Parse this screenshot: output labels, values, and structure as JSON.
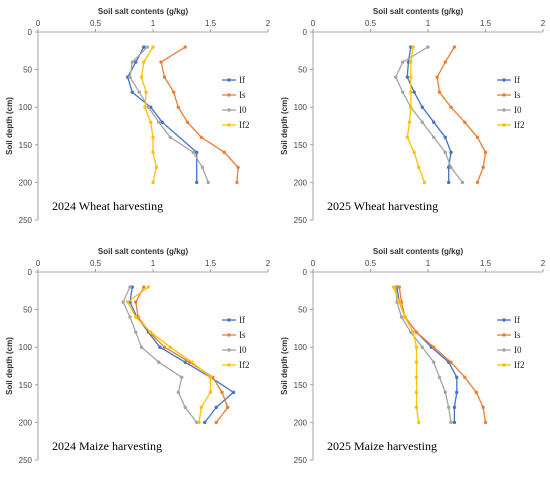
{
  "chart_data": [
    {
      "type": "line",
      "title": "2024 Wheat harvesting",
      "xlabel": "Soil salt contents (g/kg)",
      "ylabel": "Soil depth (cm)",
      "xlim": [
        0,
        2
      ],
      "ylim": [
        0,
        250
      ],
      "x_ticks": [
        "0",
        "0.5",
        "1",
        "1.5",
        "2"
      ],
      "y_ticks": [
        "0",
        "50",
        "100",
        "150",
        "200",
        "250"
      ],
      "y_inverted": true,
      "legend_position": "right",
      "series": [
        {
          "name": "If",
          "color": "#4472C4",
          "points": [
            [
              0.92,
              20
            ],
            [
              0.85,
              40
            ],
            [
              0.78,
              60
            ],
            [
              0.82,
              80
            ],
            [
              0.98,
              100
            ],
            [
              1.08,
              120
            ],
            [
              1.38,
              160
            ],
            [
              1.38,
              200
            ]
          ]
        },
        {
          "name": "Is",
          "color": "#ED7D31",
          "points": [
            [
              1.28,
              20
            ],
            [
              1.07,
              40
            ],
            [
              1.1,
              60
            ],
            [
              1.18,
              80
            ],
            [
              1.22,
              100
            ],
            [
              1.3,
              120
            ],
            [
              1.42,
              140
            ],
            [
              1.62,
              160
            ],
            [
              1.74,
              180
            ],
            [
              1.73,
              200
            ]
          ]
        },
        {
          "name": "I0",
          "color": "#A5A5A5",
          "points": [
            [
              0.95,
              20
            ],
            [
              0.82,
              40
            ],
            [
              0.8,
              60
            ],
            [
              0.88,
              80
            ],
            [
              0.96,
              100
            ],
            [
              1.05,
              120
            ],
            [
              1.15,
              140
            ],
            [
              1.35,
              160
            ],
            [
              1.43,
              180
            ],
            [
              1.48,
              200
            ]
          ]
        },
        {
          "name": "If2",
          "color": "#FFC000",
          "points": [
            [
              1.0,
              20
            ],
            [
              0.92,
              40
            ],
            [
              0.9,
              60
            ],
            [
              0.94,
              80
            ],
            [
              0.93,
              100
            ],
            [
              0.98,
              120
            ],
            [
              1.0,
              140
            ],
            [
              1.0,
              160
            ],
            [
              1.03,
              180
            ],
            [
              1.0,
              200
            ]
          ]
        }
      ]
    },
    {
      "type": "line",
      "title": "2025 Wheat harvesting",
      "xlabel": "Soil salt contents (g/kg)",
      "ylabel": "Soil depth (cm)",
      "xlim": [
        0,
        2
      ],
      "ylim": [
        0,
        250
      ],
      "x_ticks": [
        "0",
        "0.5",
        "1",
        "1.5",
        "2"
      ],
      "y_ticks": [
        "0",
        "50",
        "100",
        "150",
        "200",
        "250"
      ],
      "y_inverted": true,
      "legend_position": "right",
      "series": [
        {
          "name": "If",
          "color": "#4472C4",
          "points": [
            [
              0.85,
              20
            ],
            [
              0.83,
              40
            ],
            [
              0.82,
              60
            ],
            [
              0.88,
              80
            ],
            [
              0.95,
              100
            ],
            [
              1.05,
              120
            ],
            [
              1.15,
              140
            ],
            [
              1.2,
              160
            ],
            [
              1.18,
              180
            ],
            [
              1.18,
              200
            ]
          ]
        },
        {
          "name": "Is",
          "color": "#ED7D31",
          "points": [
            [
              1.23,
              20
            ],
            [
              1.15,
              40
            ],
            [
              1.08,
              60
            ],
            [
              1.1,
              80
            ],
            [
              1.2,
              100
            ],
            [
              1.32,
              120
            ],
            [
              1.43,
              140
            ],
            [
              1.5,
              160
            ],
            [
              1.48,
              180
            ],
            [
              1.43,
              200
            ]
          ]
        },
        {
          "name": "I0",
          "color": "#A5A5A5",
          "points": [
            [
              1.0,
              20
            ],
            [
              0.78,
              40
            ],
            [
              0.72,
              60
            ],
            [
              0.78,
              80
            ],
            [
              0.85,
              100
            ],
            [
              0.95,
              120
            ],
            [
              1.05,
              140
            ],
            [
              1.15,
              160
            ],
            [
              1.2,
              180
            ],
            [
              1.3,
              200
            ]
          ]
        },
        {
          "name": "If2",
          "color": "#FFC000",
          "points": [
            [
              0.87,
              20
            ],
            [
              0.85,
              40
            ],
            [
              0.85,
              60
            ],
            [
              0.85,
              80
            ],
            [
              0.85,
              100
            ],
            [
              0.84,
              120
            ],
            [
              0.82,
              140
            ],
            [
              0.88,
              160
            ],
            [
              0.92,
              180
            ],
            [
              0.97,
              200
            ]
          ]
        }
      ]
    },
    {
      "type": "line",
      "title": "2024 Maize harvesting",
      "xlabel": "Soil salt contents (g/kg)",
      "ylabel": "Soil depth (cm)",
      "xlim": [
        0,
        2
      ],
      "ylim": [
        0,
        250
      ],
      "x_ticks": [
        "0",
        "0.5",
        "1",
        "1.5",
        "2"
      ],
      "y_ticks": [
        "0",
        "50",
        "100",
        "150",
        "200",
        "250"
      ],
      "y_inverted": true,
      "legend_position": "right",
      "series": [
        {
          "name": "If",
          "color": "#4472C4",
          "points": [
            [
              0.82,
              20
            ],
            [
              0.8,
              40
            ],
            [
              0.86,
              60
            ],
            [
              0.96,
              80
            ],
            [
              1.06,
              100
            ],
            [
              1.28,
              120
            ],
            [
              1.5,
              140
            ],
            [
              1.7,
              160
            ],
            [
              1.55,
              180
            ],
            [
              1.45,
              200
            ]
          ]
        },
        {
          "name": "Is",
          "color": "#ED7D31",
          "points": [
            [
              0.92,
              20
            ],
            [
              0.85,
              40
            ],
            [
              0.87,
              60
            ],
            [
              0.97,
              80
            ],
            [
              1.1,
              100
            ],
            [
              1.32,
              120
            ],
            [
              1.52,
              140
            ],
            [
              1.6,
              160
            ],
            [
              1.65,
              180
            ],
            [
              1.55,
              200
            ]
          ]
        },
        {
          "name": "I0",
          "color": "#A5A5A5",
          "points": [
            [
              0.8,
              20
            ],
            [
              0.74,
              40
            ],
            [
              0.8,
              60
            ],
            [
              0.85,
              80
            ],
            [
              0.9,
              100
            ],
            [
              1.05,
              120
            ],
            [
              1.25,
              140
            ],
            [
              1.22,
              160
            ],
            [
              1.28,
              180
            ],
            [
              1.38,
              200
            ]
          ]
        },
        {
          "name": "If2",
          "color": "#FFC000",
          "points": [
            [
              0.96,
              20
            ],
            [
              0.78,
              40
            ],
            [
              0.85,
              60
            ],
            [
              0.98,
              80
            ],
            [
              1.15,
              100
            ],
            [
              1.34,
              120
            ],
            [
              1.5,
              140
            ],
            [
              1.5,
              160
            ],
            [
              1.42,
              180
            ],
            [
              1.4,
              200
            ]
          ]
        }
      ]
    },
    {
      "type": "line",
      "title": "2025 Maize harvesting",
      "xlabel": "Soil salt contents (g/kg)",
      "ylabel": "Soil depth (cm)",
      "xlim": [
        0,
        2
      ],
      "ylim": [
        0,
        250
      ],
      "x_ticks": [
        "0",
        "0.5",
        "1",
        "1.5",
        "2"
      ],
      "y_ticks": [
        "0",
        "50",
        "100",
        "150",
        "200",
        "250"
      ],
      "y_inverted": true,
      "legend_position": "right",
      "series": [
        {
          "name": "If",
          "color": "#4472C4",
          "points": [
            [
              0.73,
              20
            ],
            [
              0.75,
              40
            ],
            [
              0.8,
              60
            ],
            [
              0.9,
              80
            ],
            [
              1.03,
              100
            ],
            [
              1.18,
              120
            ],
            [
              1.25,
              140
            ],
            [
              1.25,
              160
            ],
            [
              1.23,
              180
            ],
            [
              1.23,
              200
            ]
          ]
        },
        {
          "name": "Is",
          "color": "#ED7D31",
          "points": [
            [
              0.75,
              20
            ],
            [
              0.77,
              40
            ],
            [
              0.8,
              60
            ],
            [
              0.9,
              80
            ],
            [
              1.05,
              100
            ],
            [
              1.2,
              120
            ],
            [
              1.32,
              140
            ],
            [
              1.42,
              160
            ],
            [
              1.48,
              180
            ],
            [
              1.5,
              200
            ]
          ]
        },
        {
          "name": "I0",
          "color": "#A5A5A5",
          "points": [
            [
              0.72,
              20
            ],
            [
              0.73,
              40
            ],
            [
              0.77,
              60
            ],
            [
              0.85,
              80
            ],
            [
              0.95,
              100
            ],
            [
              1.05,
              120
            ],
            [
              1.1,
              140
            ],
            [
              1.15,
              160
            ],
            [
              1.18,
              180
            ],
            [
              1.2,
              200
            ]
          ]
        },
        {
          "name": "If2",
          "color": "#FFC000",
          "points": [
            [
              0.7,
              20
            ],
            [
              0.75,
              40
            ],
            [
              0.8,
              60
            ],
            [
              0.87,
              80
            ],
            [
              0.9,
              100
            ],
            [
              0.9,
              120
            ],
            [
              0.9,
              140
            ],
            [
              0.9,
              160
            ],
            [
              0.9,
              180
            ],
            [
              0.92,
              200
            ]
          ]
        }
      ]
    }
  ]
}
